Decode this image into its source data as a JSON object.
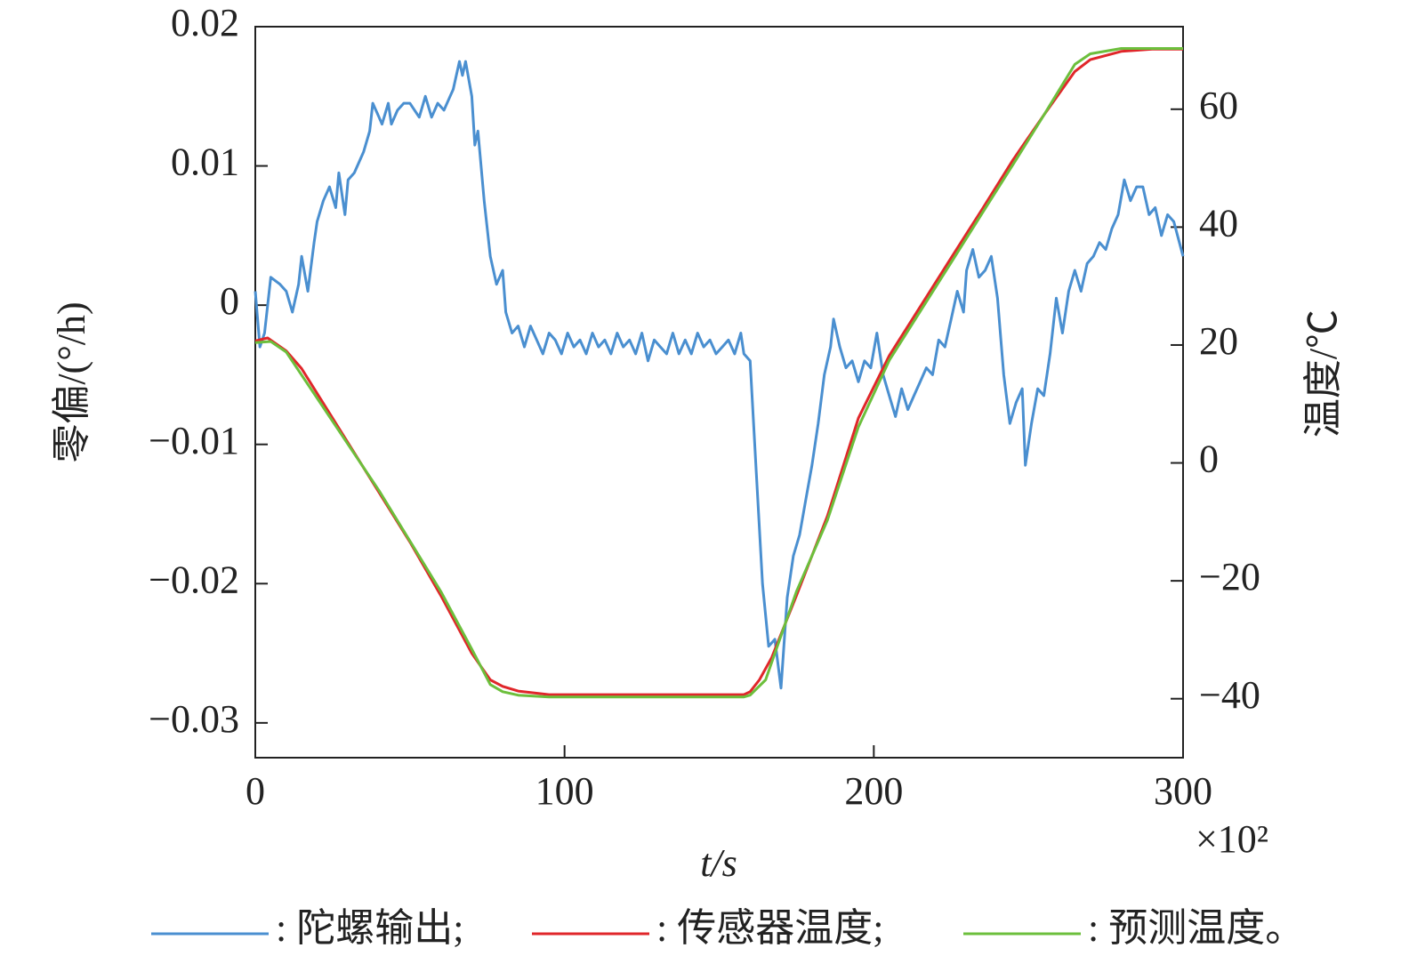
{
  "chart_data": {
    "type": "line",
    "x_label": "t/s",
    "y_label": "零偏/(°/h)",
    "y2_label": "温度/℃",
    "x_multiplier": "×10²",
    "xlim": [
      0,
      300
    ],
    "xticks": [
      0,
      100,
      200,
      300
    ],
    "ylim": [
      -0.0325,
      0.02
    ],
    "yticks": [
      0.02,
      0.01,
      0,
      {
        "value": -0.01,
        "label": "−0.01"
      },
      {
        "value": -0.02,
        "label": "−0.02"
      },
      {
        "value": -0.03,
        "label": "−0.03"
      }
    ],
    "y2lim": [
      -50,
      74
    ],
    "y2ticks": [
      60,
      40,
      20,
      0,
      {
        "value": -20,
        "label": "−20"
      },
      {
        "value": -40,
        "label": "−40"
      }
    ],
    "series": [
      {
        "name": ": 陀螺输出;",
        "color": "#4a8fd0",
        "x": [
          0,
          1.5,
          3,
          5,
          8,
          10,
          12,
          14,
          15,
          17,
          19,
          20,
          22,
          24,
          26,
          27,
          29,
          30,
          32,
          35,
          37,
          38,
          40,
          41,
          43,
          44,
          46,
          48,
          50,
          53,
          55,
          57,
          59,
          61,
          63,
          64,
          66,
          67,
          68,
          70,
          71,
          72,
          74,
          76,
          78,
          80,
          81,
          83,
          85,
          87,
          89,
          91,
          93,
          95,
          97,
          99,
          101,
          103,
          105,
          107,
          109,
          111,
          113,
          115,
          117,
          119,
          121,
          123,
          125,
          127,
          129,
          131,
          133,
          135,
          137,
          139,
          141,
          143,
          145,
          147,
          149,
          151,
          153,
          155,
          157,
          158,
          160,
          162,
          164,
          166,
          168,
          170,
          172,
          174,
          176,
          178,
          180,
          182,
          184,
          186,
          187,
          189,
          191,
          193,
          195,
          197,
          199,
          201,
          203,
          205,
          207,
          209,
          211,
          213,
          215,
          217,
          219,
          221,
          223,
          225,
          227,
          229,
          230,
          232,
          234,
          236,
          238,
          240,
          242,
          244,
          246,
          248,
          249,
          251,
          253,
          255,
          257,
          259,
          261,
          263,
          265,
          267,
          269,
          271,
          273,
          275,
          277,
          279,
          281,
          283,
          285,
          287,
          289,
          291,
          293,
          295,
          297,
          300
        ],
        "values": [
          0.001,
          -0.003,
          -0.002,
          0.002,
          0.0015,
          0.001,
          -0.0005,
          0.0015,
          0.0035,
          0.001,
          0.0045,
          0.006,
          0.0075,
          0.0085,
          0.007,
          0.0095,
          0.0065,
          0.009,
          0.0095,
          0.011,
          0.0125,
          0.0145,
          0.0135,
          0.013,
          0.0145,
          0.013,
          0.014,
          0.0145,
          0.0145,
          0.0135,
          0.015,
          0.0135,
          0.0145,
          0.014,
          0.015,
          0.0155,
          0.0175,
          0.0165,
          0.0175,
          0.015,
          0.0115,
          0.0125,
          0.0075,
          0.0035,
          0.0015,
          0.0025,
          -0.0005,
          -0.002,
          -0.0015,
          -0.003,
          -0.0015,
          -0.0025,
          -0.0035,
          -0.002,
          -0.0025,
          -0.0035,
          -0.002,
          -0.003,
          -0.0025,
          -0.0035,
          -0.002,
          -0.003,
          -0.0025,
          -0.0035,
          -0.002,
          -0.003,
          -0.0025,
          -0.0035,
          -0.002,
          -0.004,
          -0.0025,
          -0.003,
          -0.0035,
          -0.002,
          -0.0035,
          -0.0025,
          -0.0035,
          -0.002,
          -0.003,
          -0.0025,
          -0.0035,
          -0.003,
          -0.0025,
          -0.0035,
          -0.002,
          -0.0035,
          -0.004,
          -0.012,
          -0.02,
          -0.0245,
          -0.024,
          -0.0275,
          -0.021,
          -0.018,
          -0.0165,
          -0.014,
          -0.0115,
          -0.0085,
          -0.005,
          -0.003,
          -0.001,
          -0.003,
          -0.0045,
          -0.004,
          -0.0055,
          -0.004,
          -0.0045,
          -0.002,
          -0.005,
          -0.0065,
          -0.008,
          -0.006,
          -0.0075,
          -0.0065,
          -0.0055,
          -0.0045,
          -0.005,
          -0.0025,
          -0.003,
          -0.001,
          0.001,
          -0.0005,
          0.0025,
          0.004,
          0.002,
          0.0025,
          0.0035,
          0.0005,
          -0.005,
          -0.0085,
          -0.007,
          -0.006,
          -0.0115,
          -0.0085,
          -0.006,
          -0.0065,
          -0.0035,
          0.0005,
          -0.002,
          0.001,
          0.0025,
          0.001,
          0.003,
          0.0035,
          0.0045,
          0.004,
          0.0055,
          0.0065,
          0.009,
          0.0075,
          0.0085,
          0.0085,
          0.0065,
          0.007,
          0.005,
          0.0065,
          0.006,
          0.0035
        ]
      },
      {
        "name": ": 传感器温度;",
        "color": "#e0262a",
        "axis": "y2",
        "x": [
          0,
          4,
          10,
          15,
          25,
          40,
          50,
          60,
          70,
          76,
          80,
          85,
          95,
          158,
          160,
          163,
          167,
          175,
          185,
          195,
          205,
          215,
          225,
          235,
          245,
          255,
          265,
          270,
          280,
          290,
          300
        ],
        "values": [
          20.7,
          21.2,
          19,
          16,
          7.6,
          -5,
          -13.4,
          -22.5,
          -32.3,
          -36.8,
          -37.9,
          -38.7,
          -39.3,
          -39.3,
          -38.8,
          -36.8,
          -33,
          -22.5,
          -9,
          7.6,
          18.2,
          26.5,
          34.8,
          43,
          51.4,
          59,
          66.4,
          68.4,
          69.8,
          70.2,
          70.2
        ]
      },
      {
        "name": ": 预测温度。",
        "color": "#6cbf3c",
        "axis": "y2",
        "x": [
          0,
          5,
          10,
          40,
          60,
          70,
          76,
          80,
          85,
          95,
          158,
          160,
          165,
          175,
          185,
          195,
          205,
          215,
          225,
          235,
          245,
          255,
          265,
          270,
          280,
          300
        ],
        "values": [
          20.4,
          20.6,
          18.8,
          -4.7,
          -21.8,
          -31.6,
          -37.6,
          -38.8,
          -39.4,
          -39.7,
          -39.7,
          -39.4,
          -36.8,
          -21.8,
          -9.7,
          6.1,
          17.4,
          25.7,
          34,
          42.3,
          50.6,
          59,
          67.6,
          69.4,
          70.3,
          70.3
        ]
      }
    ]
  }
}
